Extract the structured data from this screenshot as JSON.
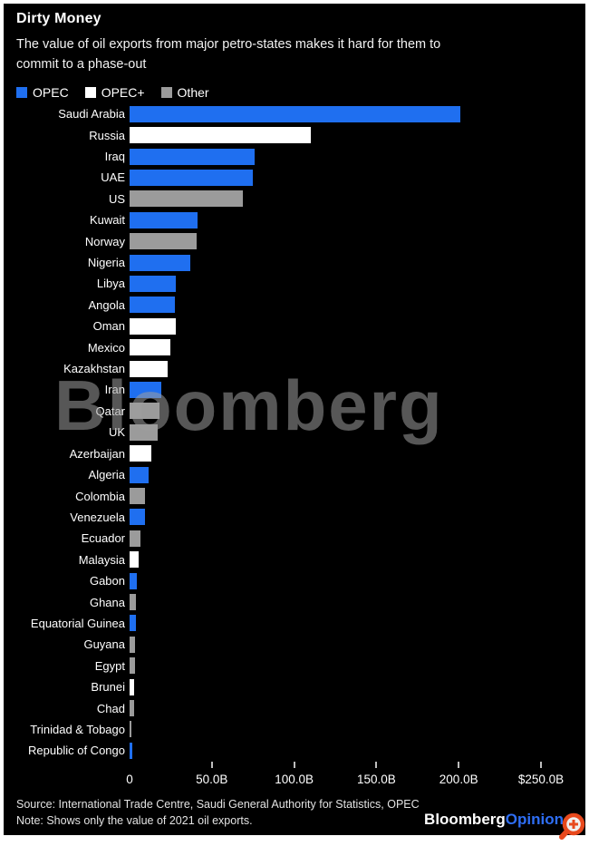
{
  "header": {
    "title": "Dirty Money",
    "subtitle_lines": [
      "The value of oil exports from major petro-states makes it hard for them to",
      "commit to a phase-out"
    ]
  },
  "legend": [
    {
      "label": "OPEC",
      "group": "OPEC"
    },
    {
      "label": "OPEC+",
      "group": "OPEC+"
    },
    {
      "label": "Other",
      "group": "Other"
    }
  ],
  "chart_data": {
    "type": "bar",
    "orientation": "horizontal",
    "title": "Dirty Money",
    "unit": "USD billions (2021 oil exports)",
    "xlim": [
      0,
      250
    ],
    "x_ticks": [
      {
        "label": "0",
        "value": 0
      },
      {
        "label": "50.0B",
        "value": 50
      },
      {
        "label": "100.0B",
        "value": 100
      },
      {
        "label": "150.0B",
        "value": 150
      },
      {
        "label": "200.0B",
        "value": 200
      },
      {
        "label": "$250.0B",
        "value": 250
      }
    ],
    "categories": [
      "Saudi Arabia",
      "Russia",
      "Iraq",
      "UAE",
      "US",
      "Kuwait",
      "Norway",
      "Nigeria",
      "Libya",
      "Angola",
      "Oman",
      "Mexico",
      "Kazakhstan",
      "Iran",
      "Qatar",
      "UK",
      "Azerbaijan",
      "Algeria",
      "Colombia",
      "Venezuela",
      "Ecuador",
      "Malaysia",
      "Gabon",
      "Ghana",
      "Equatorial Guinea",
      "Guyana",
      "Egypt",
      "Brunei",
      "Chad",
      "Trinidad & Tobago",
      "Republic of Congo"
    ],
    "values": [
      201,
      110,
      76,
      75,
      69,
      41.5,
      41,
      37,
      28,
      27.5,
      28,
      25,
      23,
      19,
      18,
      17,
      13,
      11.7,
      9.5,
      9.5,
      6.8,
      5.5,
      4.2,
      4.0,
      3.7,
      3.3,
      3.1,
      2.8,
      2.6,
      1.2,
      1.5
    ],
    "groups": [
      "OPEC",
      "OPEC+",
      "OPEC",
      "OPEC",
      "Other",
      "OPEC",
      "Other",
      "OPEC",
      "OPEC",
      "OPEC",
      "OPEC+",
      "OPEC+",
      "OPEC+",
      "OPEC",
      "Other",
      "Other",
      "OPEC+",
      "OPEC",
      "Other",
      "OPEC",
      "Other",
      "OPEC+",
      "OPEC",
      "Other",
      "OPEC",
      "Other",
      "Other",
      "OPEC+",
      "Other",
      "Other",
      "OPEC"
    ],
    "legend_position": "top",
    "grid": false
  },
  "watermark": "Bloomberg",
  "footer": {
    "source": "Source: International Trade Centre, Saudi General Authority for Statistics, OPEC",
    "note": "Note: Shows only the value of 2021 oil exports.",
    "logo_part1": "Bloomberg",
    "logo_part2": "Opinion"
  },
  "colors": {
    "OPEC": "#1f6ff0",
    "OPEC+": "#ffffff",
    "Other": "#9b9b9b",
    "opinion_blue": "#2e6ef5",
    "magnifier_orange": "#e8491d",
    "background": "#000000",
    "text": "#ffffff"
  }
}
